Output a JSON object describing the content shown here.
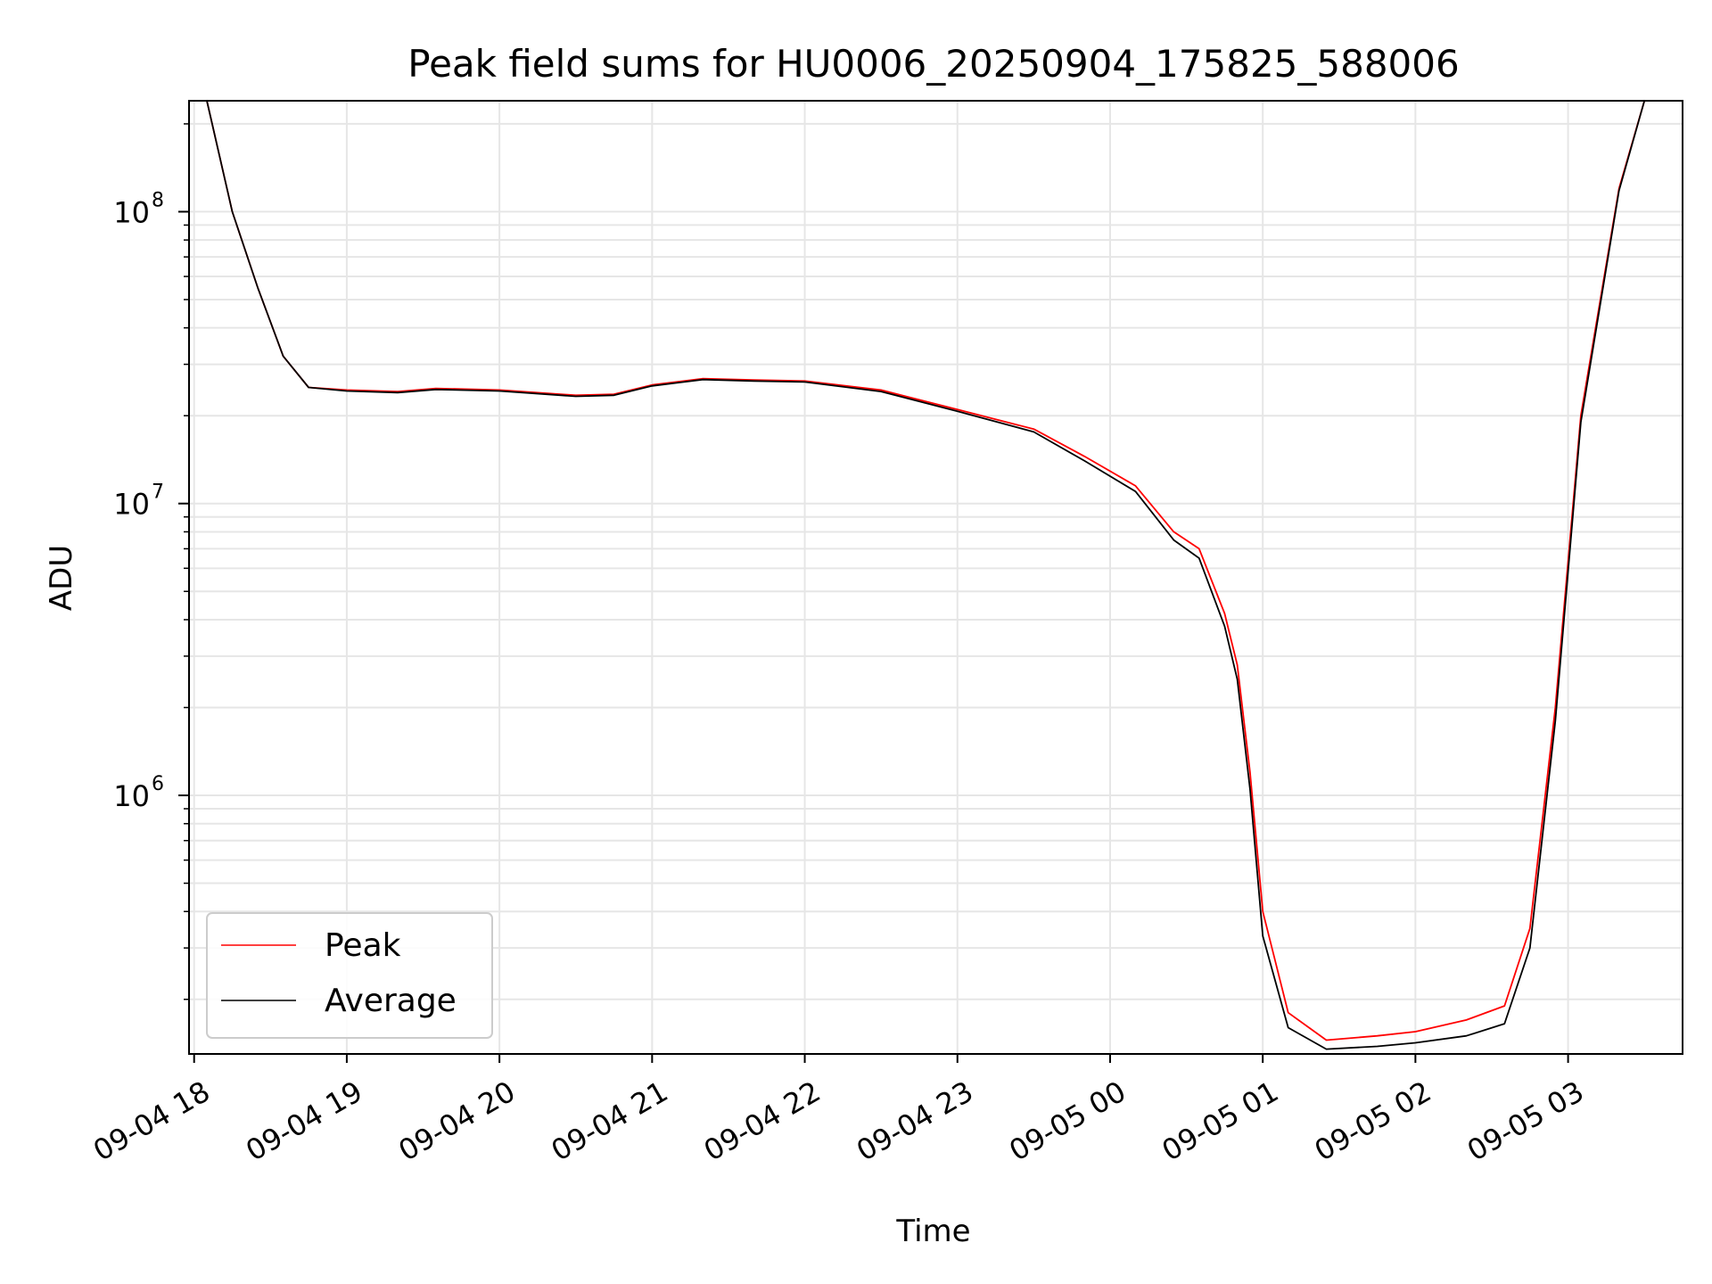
{
  "chart_data": {
    "type": "line",
    "title": "Peak field sums for HU0006_20250904_175825_588006",
    "xlabel": "Time",
    "ylabel": "ADU",
    "yscale": "log",
    "ylim": [
      130000,
      240000000
    ],
    "xlim": [
      "2025-09-04 17:58",
      "2025-09-05 03:45"
    ],
    "grid": true,
    "legend_position": "lower-left",
    "x_ticks": [
      "09-04 18",
      "09-04 19",
      "09-04 20",
      "09-04 21",
      "09-04 22",
      "09-04 23",
      "09-05 00",
      "09-05 01",
      "09-05 02",
      "09-05 03"
    ],
    "y_ticks": [
      {
        "value": 1000000,
        "base": "10",
        "exp": "6"
      },
      {
        "value": 10000000,
        "base": "10",
        "exp": "7"
      },
      {
        "value": 100000000,
        "base": "10",
        "exp": "8"
      }
    ],
    "series": [
      {
        "name": "Peak",
        "color": "#ff0000",
        "points": [
          [
            "2025-09-04 18:05",
            240000000
          ],
          [
            "2025-09-04 18:15",
            100000000
          ],
          [
            "2025-09-04 18:25",
            55000000
          ],
          [
            "2025-09-04 18:35",
            32000000
          ],
          [
            "2025-09-04 18:45",
            25000000
          ],
          [
            "2025-09-04 19:00",
            24500000
          ],
          [
            "2025-09-04 19:20",
            24200000
          ],
          [
            "2025-09-04 19:35",
            24800000
          ],
          [
            "2025-09-04 20:00",
            24500000
          ],
          [
            "2025-09-04 20:30",
            23500000
          ],
          [
            "2025-09-04 20:45",
            23700000
          ],
          [
            "2025-09-04 21:00",
            25500000
          ],
          [
            "2025-09-04 21:20",
            26800000
          ],
          [
            "2025-09-04 21:40",
            26500000
          ],
          [
            "2025-09-04 22:00",
            26300000
          ],
          [
            "2025-09-04 22:30",
            24500000
          ],
          [
            "2025-09-04 23:00",
            21000000
          ],
          [
            "2025-09-04 23:30",
            18000000
          ],
          [
            "2025-09-04 23:50",
            14500000
          ],
          [
            "2025-09-05 00:10",
            11500000
          ],
          [
            "2025-09-05 00:25",
            8000000
          ],
          [
            "2025-09-05 00:35",
            7000000
          ],
          [
            "2025-09-05 00:45",
            4200000
          ],
          [
            "2025-09-05 00:50",
            2800000
          ],
          [
            "2025-09-05 00:55",
            1200000
          ],
          [
            "2025-09-05 01:00",
            400000
          ],
          [
            "2025-09-05 01:10",
            180000
          ],
          [
            "2025-09-05 01:25",
            145000
          ],
          [
            "2025-09-05 01:45",
            150000
          ],
          [
            "2025-09-05 02:00",
            155000
          ],
          [
            "2025-09-05 02:20",
            170000
          ],
          [
            "2025-09-05 02:35",
            190000
          ],
          [
            "2025-09-05 02:45",
            350000
          ],
          [
            "2025-09-05 02:55",
            2000000
          ],
          [
            "2025-09-05 03:05",
            20000000
          ],
          [
            "2025-09-05 03:20",
            120000000
          ],
          [
            "2025-09-05 03:30",
            240000000
          ]
        ]
      },
      {
        "name": "Average",
        "color": "#000000",
        "points": [
          [
            "2025-09-04 18:05",
            240000000
          ],
          [
            "2025-09-04 18:15",
            100000000
          ],
          [
            "2025-09-04 18:25",
            55000000
          ],
          [
            "2025-09-04 18:35",
            32000000
          ],
          [
            "2025-09-04 18:45",
            25000000
          ],
          [
            "2025-09-04 19:00",
            24300000
          ],
          [
            "2025-09-04 19:20",
            24000000
          ],
          [
            "2025-09-04 19:35",
            24600000
          ],
          [
            "2025-09-04 20:00",
            24300000
          ],
          [
            "2025-09-04 20:30",
            23300000
          ],
          [
            "2025-09-04 20:45",
            23500000
          ],
          [
            "2025-09-04 21:00",
            25300000
          ],
          [
            "2025-09-04 21:20",
            26600000
          ],
          [
            "2025-09-04 21:40",
            26300000
          ],
          [
            "2025-09-04 22:00",
            26100000
          ],
          [
            "2025-09-04 22:30",
            24200000
          ],
          [
            "2025-09-04 23:00",
            20700000
          ],
          [
            "2025-09-04 23:30",
            17600000
          ],
          [
            "2025-09-04 23:50",
            14000000
          ],
          [
            "2025-09-05 00:10",
            11000000
          ],
          [
            "2025-09-05 00:25",
            7500000
          ],
          [
            "2025-09-05 00:35",
            6500000
          ],
          [
            "2025-09-05 00:45",
            3800000
          ],
          [
            "2025-09-05 00:50",
            2500000
          ],
          [
            "2025-09-05 00:55",
            1050000
          ],
          [
            "2025-09-05 01:00",
            330000
          ],
          [
            "2025-09-05 01:10",
            160000
          ],
          [
            "2025-09-05 01:25",
            135000
          ],
          [
            "2025-09-05 01:45",
            138000
          ],
          [
            "2025-09-05 02:00",
            142000
          ],
          [
            "2025-09-05 02:20",
            150000
          ],
          [
            "2025-09-05 02:35",
            165000
          ],
          [
            "2025-09-05 02:45",
            300000
          ],
          [
            "2025-09-05 02:55",
            1800000
          ],
          [
            "2025-09-05 03:05",
            19000000
          ],
          [
            "2025-09-05 03:20",
            118000000
          ],
          [
            "2025-09-05 03:30",
            240000000
          ]
        ]
      }
    ]
  }
}
